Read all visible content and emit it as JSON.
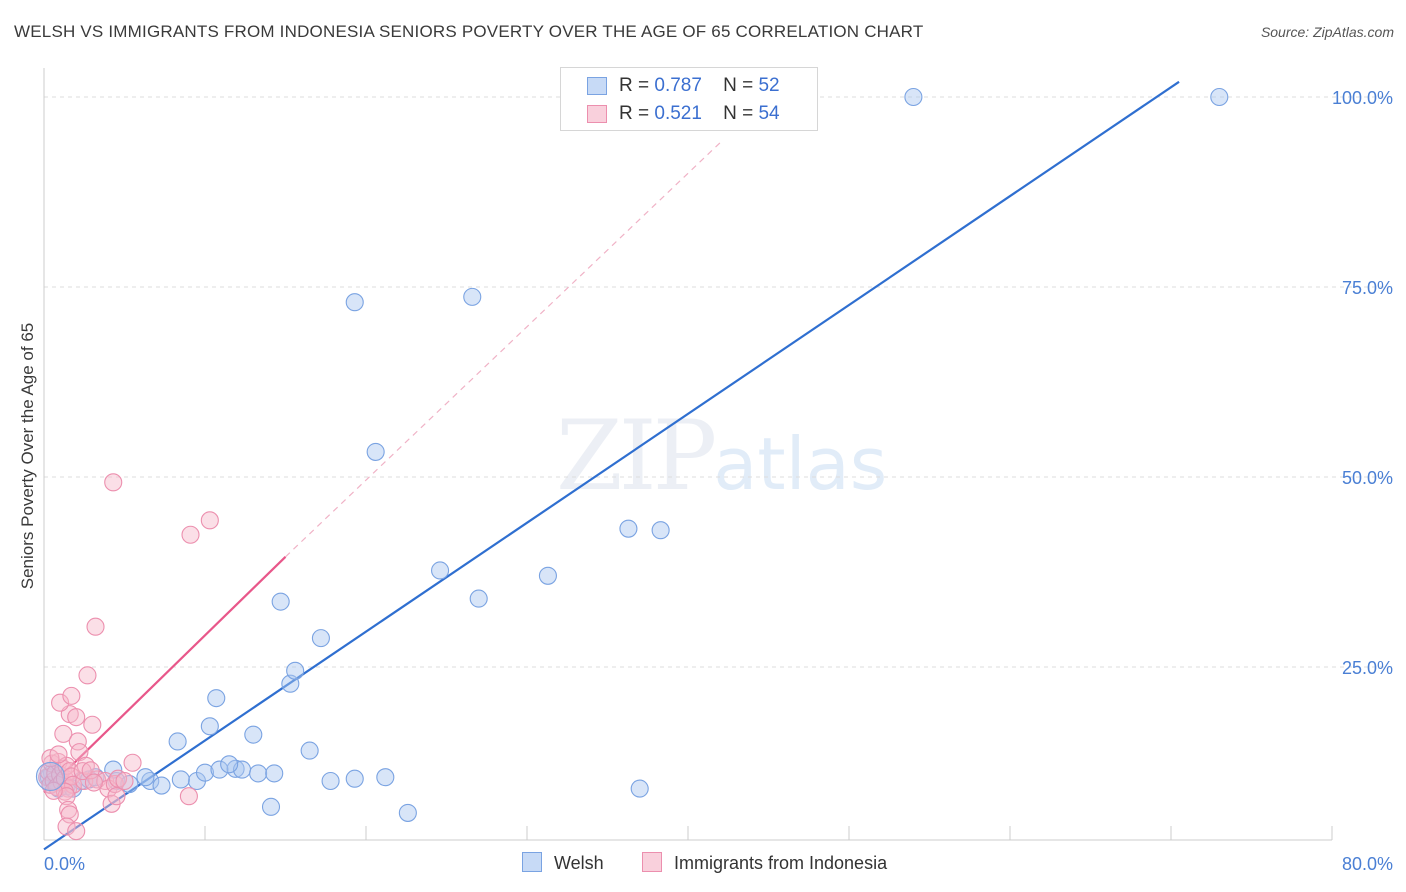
{
  "header": {
    "title": "WELSH VS IMMIGRANTS FROM INDONESIA SENIORS POVERTY OVER THE AGE OF 65 CORRELATION CHART",
    "source": "Source: ZipAtlas.com"
  },
  "watermark": {
    "main": "ZIP",
    "sub": "atlas"
  },
  "legend_top": {
    "rows": [
      {
        "r_label": "R =",
        "r_value": "0.787",
        "n_label": "N =",
        "n_value": "52"
      },
      {
        "r_label": "R =",
        "r_value": "0.521",
        "n_label": "N =",
        "n_value": "54"
      }
    ]
  },
  "legend_bottom": {
    "items": [
      "Welsh",
      "Immigrants from Indonesia"
    ]
  },
  "colors": {
    "welsh_fill": "#a9c6f0",
    "welsh_stroke": "#7aa3e2",
    "welsh_line": "#2f6fd0",
    "indo_fill": "#f6b8ca",
    "indo_stroke": "#ec8fae",
    "indo_line": "#e8578a",
    "grid": "#dddddd",
    "tick_label": "#4a7fd4"
  },
  "chart_data": {
    "type": "scatter",
    "title": "WELSH VS IMMIGRANTS FROM INDONESIA SENIORS POVERTY OVER THE AGE OF 65 CORRELATION CHART",
    "xlabel": "",
    "ylabel": "Seniors Poverty Over the Age of 65",
    "xlim": [
      0,
      80
    ],
    "ylim": [
      0,
      100
    ],
    "x_tick_labels": [
      "0.0%",
      "80.0%"
    ],
    "y_ticks": [
      {
        "value": 25,
        "label": "25.0%"
      },
      {
        "value": 50,
        "label": "50.0%"
      },
      {
        "value": 75,
        "label": "75.0%"
      },
      {
        "value": 100,
        "label": "100.0%"
      }
    ],
    "series": [
      {
        "name": "Welsh",
        "r": 0.787,
        "n": 52,
        "trend": {
          "x": [
            0,
            70.5
          ],
          "y": [
            1,
            102
          ]
        },
        "points": [
          [
            0.3,
            10.5
          ],
          [
            0.4,
            9.5
          ],
          [
            0.6,
            10.0
          ],
          [
            0.8,
            9.8
          ],
          [
            1.0,
            10.2
          ],
          [
            0.5,
            11.0
          ],
          [
            0.9,
            9.0
          ],
          [
            1.4,
            9.3
          ],
          [
            1.8,
            9.0
          ],
          [
            2.3,
            10.0
          ],
          [
            2.8,
            10.2
          ],
          [
            3.2,
            10.5
          ],
          [
            4.5,
            10.0
          ],
          [
            5.3,
            9.6
          ],
          [
            4.3,
            11.5
          ],
          [
            6.6,
            10.0
          ],
          [
            7.3,
            9.4
          ],
          [
            6.3,
            10.5
          ],
          [
            9.5,
            10.0
          ],
          [
            8.5,
            10.2
          ],
          [
            10.0,
            11.1
          ],
          [
            10.9,
            11.5
          ],
          [
            11.9,
            11.6
          ],
          [
            12.3,
            11.5
          ],
          [
            13.3,
            11.0
          ],
          [
            14.3,
            11.0
          ],
          [
            11.5,
            12.2
          ],
          [
            8.3,
            15.2
          ],
          [
            10.3,
            17.2
          ],
          [
            10.7,
            20.9
          ],
          [
            13.0,
            16.1
          ],
          [
            14.1,
            6.6
          ],
          [
            15.3,
            22.8
          ],
          [
            15.6,
            24.5
          ],
          [
            17.2,
            28.8
          ],
          [
            14.7,
            33.6
          ],
          [
            16.5,
            14.0
          ],
          [
            17.8,
            10.0
          ],
          [
            19.3,
            10.3
          ],
          [
            19.3,
            73.0
          ],
          [
            20.6,
            53.3
          ],
          [
            21.2,
            10.5
          ],
          [
            22.6,
            5.8
          ],
          [
            24.6,
            37.7
          ],
          [
            26.6,
            73.7
          ],
          [
            27.0,
            34.0
          ],
          [
            31.3,
            37.0
          ],
          [
            36.3,
            43.2
          ],
          [
            37.0,
            9.0
          ],
          [
            38.3,
            43.0
          ],
          [
            54.0,
            100.0
          ],
          [
            73.0,
            100.0
          ]
        ]
      },
      {
        "name": "Immigrants from Indonesia",
        "r": 0.521,
        "n": 54,
        "trend": {
          "x": [
            0,
            15.0
          ],
          "y": [
            8.5,
            39.5
          ]
        },
        "trend_dashed": {
          "x": [
            15.0,
            42.0
          ],
          "y": [
            39.5,
            94.0
          ]
        },
        "points": [
          [
            0.2,
            10.5
          ],
          [
            0.3,
            11.2
          ],
          [
            0.4,
            9.5
          ],
          [
            0.5,
            12.3
          ],
          [
            0.6,
            10.0
          ],
          [
            0.7,
            11.0
          ],
          [
            0.8,
            9.2
          ],
          [
            0.9,
            12.5
          ],
          [
            1.0,
            10.8
          ],
          [
            1.1,
            9.8
          ],
          [
            1.2,
            11.6
          ],
          [
            1.3,
            10.3
          ],
          [
            1.4,
            12.0
          ],
          [
            1.5,
            9.0
          ],
          [
            1.6,
            11.3
          ],
          [
            1.7,
            10.6
          ],
          [
            1.8,
            9.5
          ],
          [
            0.4,
            13.0
          ],
          [
            0.9,
            13.5
          ],
          [
            1.3,
            8.6
          ],
          [
            1.4,
            8.0
          ],
          [
            1.5,
            6.2
          ],
          [
            1.6,
            5.6
          ],
          [
            1.4,
            4.0
          ],
          [
            2.0,
            3.4
          ],
          [
            1.2,
            16.2
          ],
          [
            1.6,
            18.8
          ],
          [
            1.0,
            20.3
          ],
          [
            1.7,
            21.2
          ],
          [
            2.0,
            18.4
          ],
          [
            2.1,
            15.2
          ],
          [
            2.2,
            13.8
          ],
          [
            2.5,
            10.0
          ],
          [
            2.6,
            12.0
          ],
          [
            2.7,
            23.9
          ],
          [
            3.0,
            17.4
          ],
          [
            3.2,
            30.3
          ],
          [
            3.3,
            10.2
          ],
          [
            3.8,
            10.0
          ],
          [
            4.0,
            9.0
          ],
          [
            4.2,
            7.0
          ],
          [
            4.4,
            9.6
          ],
          [
            4.6,
            10.3
          ],
          [
            5.0,
            10.0
          ],
          [
            5.5,
            12.4
          ],
          [
            4.5,
            8.0
          ],
          [
            4.3,
            49.3
          ],
          [
            9.1,
            42.4
          ],
          [
            10.3,
            44.3
          ],
          [
            9.0,
            8.0
          ],
          [
            2.4,
            11.3
          ],
          [
            2.9,
            11.4
          ],
          [
            3.1,
            9.8
          ],
          [
            0.6,
            8.7
          ]
        ]
      }
    ]
  }
}
